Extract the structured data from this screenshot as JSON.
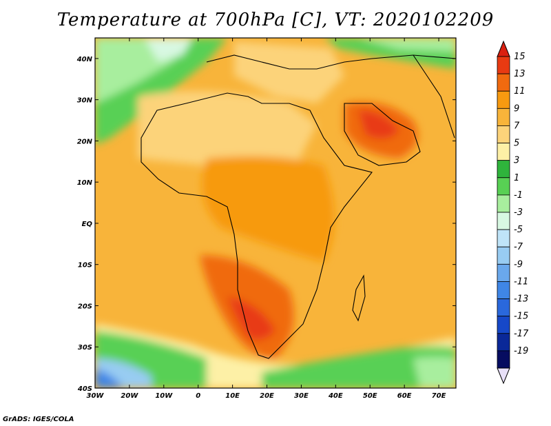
{
  "title": "Temperature at 700hPa [C], VT: 2020102209",
  "credit": "GrADS: IGES/COLA",
  "map": {
    "lon_range": [
      -30,
      75
    ],
    "lat_range": [
      -40,
      45
    ],
    "lon_ticks": [
      {
        "value": -30,
        "label": "30W"
      },
      {
        "value": -20,
        "label": "20W"
      },
      {
        "value": -10,
        "label": "10W"
      },
      {
        "value": 0,
        "label": "0"
      },
      {
        "value": 10,
        "label": "10E"
      },
      {
        "value": 20,
        "label": "20E"
      },
      {
        "value": 30,
        "label": "30E"
      },
      {
        "value": 40,
        "label": "40E"
      },
      {
        "value": 50,
        "label": "50E"
      },
      {
        "value": 60,
        "label": "60E"
      },
      {
        "value": 70,
        "label": "70E"
      }
    ],
    "lat_ticks": [
      {
        "value": 40,
        "label": "40N"
      },
      {
        "value": 30,
        "label": "30N"
      },
      {
        "value": 20,
        "label": "20N"
      },
      {
        "value": 10,
        "label": "10N"
      },
      {
        "value": 0,
        "label": "EQ"
      },
      {
        "value": -10,
        "label": "10S"
      },
      {
        "value": -20,
        "label": "20S"
      },
      {
        "value": -30,
        "label": "30S"
      },
      {
        "value": -40,
        "label": "40S"
      }
    ]
  },
  "colorbar": {
    "labels": [
      "15",
      "13",
      "11",
      "9",
      "7",
      "5",
      "3",
      "1",
      "-1",
      "-3",
      "-5",
      "-7",
      "-9",
      "-11",
      "-13",
      "-15",
      "-17",
      "-19"
    ],
    "colors": [
      "#e83a12",
      "#f06a0f",
      "#f79a10",
      "#f8b43a",
      "#fcd37a",
      "#fdf0a6",
      "#2fb43c",
      "#58d054",
      "#a8ee9e",
      "#d8f8e2",
      "#bfe4f8",
      "#98ccf2",
      "#6aa8ec",
      "#3f86e6",
      "#2a68dc",
      "#1648c8",
      "#0a2898",
      "#060c60"
    ],
    "top_color": "#d92010",
    "bottom_color": "#e8e0f8"
  }
}
